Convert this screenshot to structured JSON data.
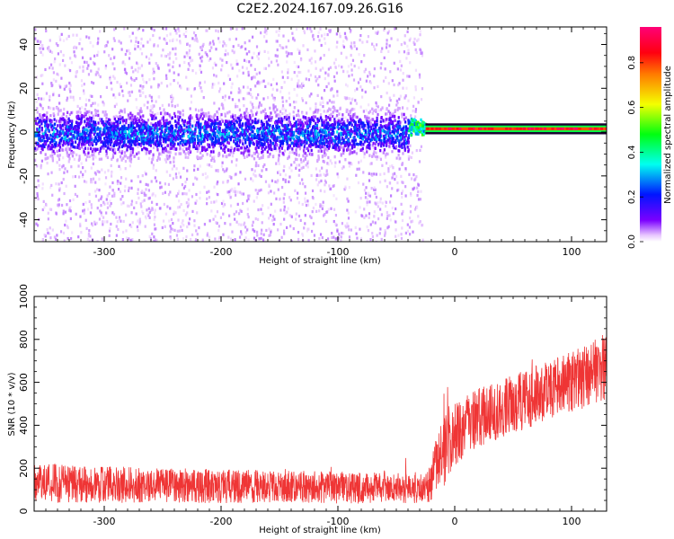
{
  "title": "C2E2.2024.167.09.26.G16",
  "chart_data": [
    {
      "type": "heatmap",
      "panel": "spectrogram",
      "xlabel": "Height of straight line (km)",
      "ylabel": "Frequency (Hz)",
      "xlim": [
        -360,
        130
      ],
      "ylim": [
        -50,
        48
      ],
      "xticks": [
        -300,
        -200,
        -100,
        0,
        100
      ],
      "xtick_labels": [
        "-300",
        "-200",
        "-100",
        "0",
        "100"
      ],
      "yticks": [
        -40,
        -20,
        0,
        20,
        40
      ],
      "ytick_labels": [
        "-40",
        "-20",
        "0",
        "20",
        "40"
      ],
      "colorbar": {
        "label": "Normalized spectral amplitude",
        "range": [
          0.0,
          0.96
        ],
        "ticks": [
          0.0,
          0.2,
          0.4,
          0.6,
          0.8
        ],
        "tick_labels": [
          "0.0",
          "0.2",
          "0.4",
          "0.6",
          "0.8"
        ],
        "colormap": "gist_rainbow (white-purple-blue-cyan-green-yellow-red-magenta)"
      },
      "features": [
        {
          "region_km": [
            -360,
            -40
          ],
          "description": "broad noisy band centered at 0 Hz, dense within about ±10 Hz, scattered faint signal up to ±50 Hz",
          "peak_amplitude": 0.3
        },
        {
          "region_km": [
            -40,
            -25
          ],
          "description": "transition with band offset to about +3 Hz",
          "peak_amplitude": 0.55
        },
        {
          "region_km": [
            -25,
            130
          ],
          "description": "narrow coherent line near +1 to +2 Hz, noise mostly absent",
          "peak_amplitude": 0.96
        }
      ]
    },
    {
      "type": "line",
      "panel": "snr",
      "xlabel": "Height of straight line (km)",
      "ylabel": "SNR (10 * v/v)",
      "xlim": [
        -360,
        130
      ],
      "ylim": [
        0,
        1000
      ],
      "xticks": [
        -300,
        -200,
        -100,
        0,
        100
      ],
      "xtick_labels": [
        "-300",
        "-200",
        "-100",
        "0",
        "100"
      ],
      "yticks": [
        0,
        200,
        400,
        600,
        800,
        1000
      ],
      "ytick_labels": [
        "0",
        "200",
        "400",
        "600",
        "800",
        "1000"
      ],
      "color": "#ef3535",
      "series": [
        {
          "x": [
            -360,
            -340,
            -320,
            -300,
            -280,
            -260,
            -240,
            -220,
            -200,
            -180,
            -160,
            -140,
            -120,
            -100,
            -80,
            -60,
            -40,
            -30,
            -25,
            -20,
            -15,
            -12,
            -10,
            -8,
            -5,
            0,
            10,
            20,
            30,
            40,
            50,
            60,
            70,
            80,
            90,
            100,
            110,
            115,
            120,
            130
          ],
          "values": [
            130,
            128,
            125,
            124,
            122,
            120,
            120,
            118,
            117,
            116,
            115,
            113,
            112,
            110,
            109,
            108,
            106,
            106,
            108,
            140,
            230,
            250,
            250,
            300,
            330,
            360,
            400,
            430,
            460,
            480,
            500,
            520,
            540,
            560,
            580,
            600,
            620,
            640,
            650,
            680
          ],
          "band_halfwidth": [
            90,
            90,
            85,
            85,
            85,
            80,
            80,
            80,
            80,
            80,
            75,
            75,
            75,
            75,
            75,
            70,
            70,
            70,
            70,
            100,
            160,
            180,
            170,
            170,
            160,
            150,
            140,
            140,
            140,
            140,
            140,
            140,
            140,
            140,
            140,
            150,
            150,
            150,
            150,
            160
          ]
        }
      ]
    }
  ]
}
